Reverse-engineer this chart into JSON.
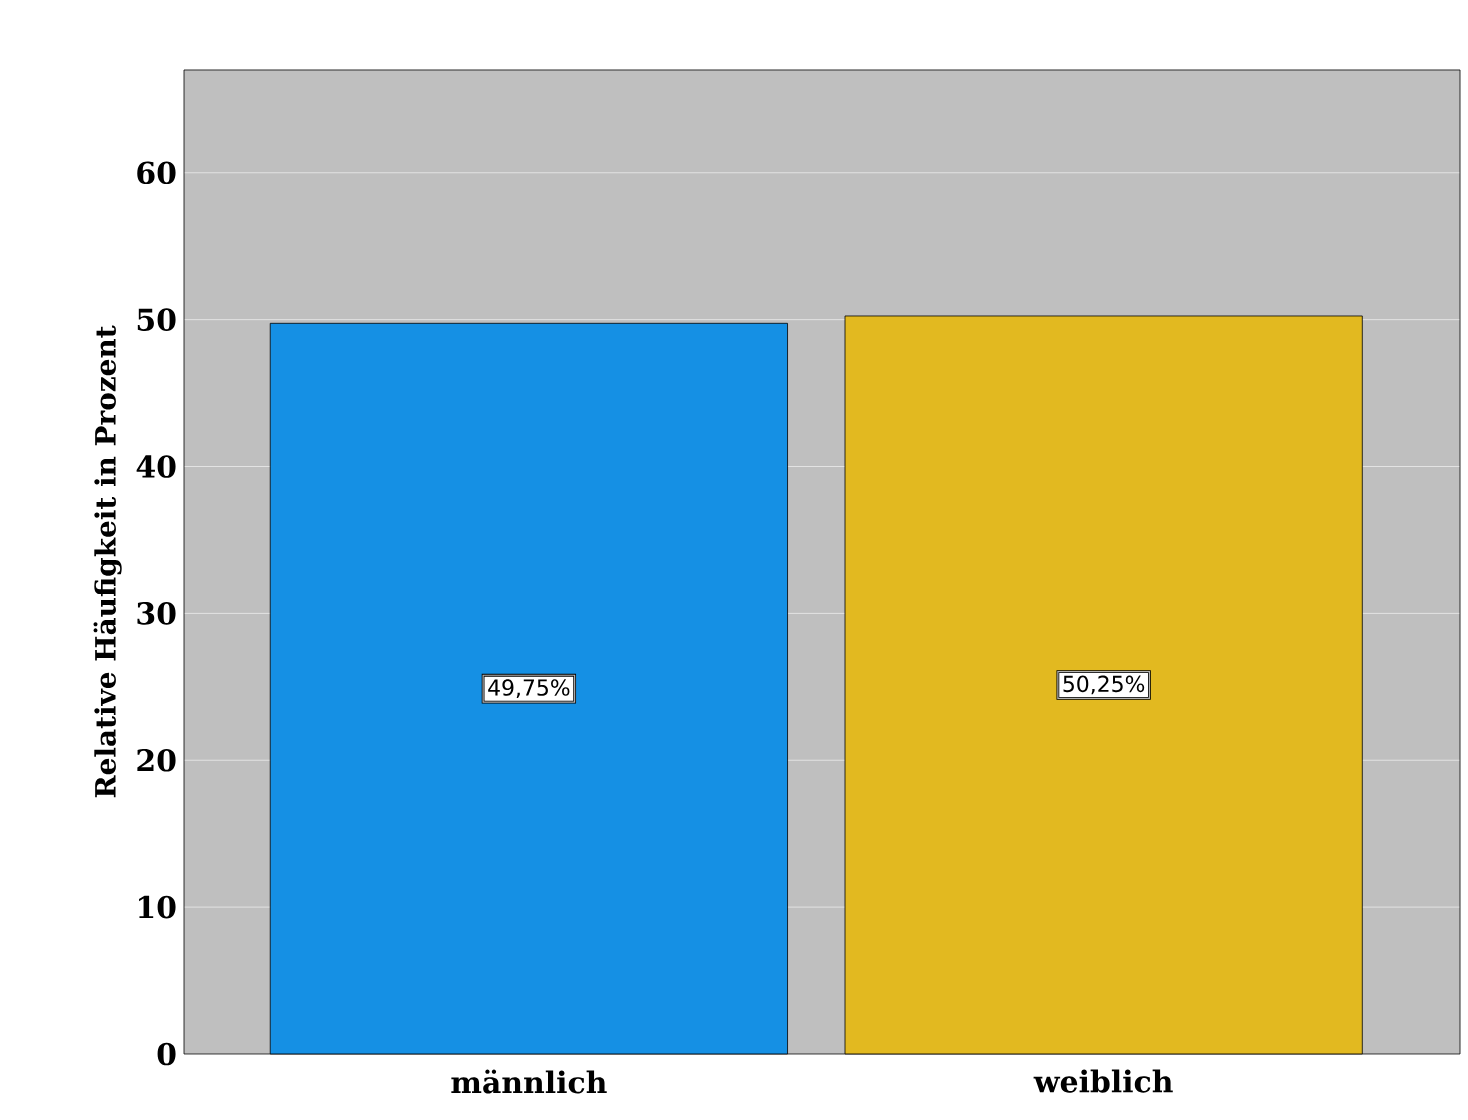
{
  "chart_data": {
    "type": "bar",
    "ylabel": "Relative Häufigkeit in Prozent",
    "categories": [
      "männlich",
      "weiblich"
    ],
    "values": [
      49.75,
      50.25
    ],
    "colors": [
      "#1590e4",
      "#e2b920"
    ],
    "value_labels": [
      "49,75%",
      "50,25%"
    ],
    "ylim": [
      0,
      67
    ],
    "yticks": [
      0,
      10,
      20,
      30,
      40,
      50,
      60
    ],
    "grid": "y"
  }
}
